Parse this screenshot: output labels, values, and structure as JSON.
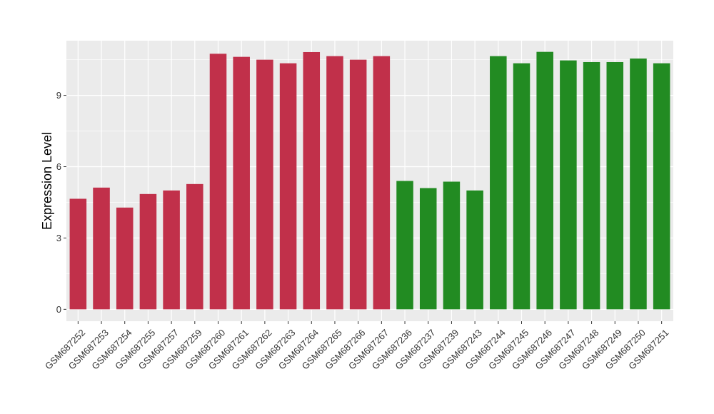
{
  "chart_data": {
    "type": "bar",
    "title": "",
    "xlabel": "",
    "ylabel": "Expression Level",
    "ylim": [
      -0.5,
      11.3
    ],
    "yticks": [
      0,
      3,
      6,
      9
    ],
    "ytick_labels": [
      "0",
      "3",
      "6",
      "9"
    ],
    "grid": true,
    "categories": [
      "GSM687252",
      "GSM687253",
      "GSM687254",
      "GSM687255",
      "GSM687257",
      "GSM687259",
      "GSM687260",
      "GSM687261",
      "GSM687262",
      "GSM687263",
      "GSM687264",
      "GSM687265",
      "GSM687266",
      "GSM687267",
      "GSM687236",
      "GSM687237",
      "GSM687239",
      "GSM687243",
      "GSM687244",
      "GSM687245",
      "GSM687246",
      "GSM687247",
      "GSM687248",
      "GSM687249",
      "GSM687250",
      "GSM687251"
    ],
    "values": [
      4.65,
      5.12,
      4.28,
      4.85,
      5.0,
      5.27,
      10.75,
      10.62,
      10.5,
      10.35,
      10.82,
      10.65,
      10.5,
      10.65,
      5.4,
      5.1,
      5.37,
      5.0,
      10.65,
      10.35,
      10.83,
      10.47,
      10.4,
      10.4,
      10.55,
      10.35
    ],
    "bar_colors": [
      "#c1304a",
      "#c1304a",
      "#c1304a",
      "#c1304a",
      "#c1304a",
      "#c1304a",
      "#c1304a",
      "#c1304a",
      "#c1304a",
      "#c1304a",
      "#c1304a",
      "#c1304a",
      "#c1304a",
      "#c1304a",
      "#228b22",
      "#228b22",
      "#228b22",
      "#228b22",
      "#228b22",
      "#228b22",
      "#228b22",
      "#228b22",
      "#228b22",
      "#228b22",
      "#228b22",
      "#228b22"
    ],
    "panel_background": "#ebebeb",
    "grid_color": "#ffffff"
  }
}
